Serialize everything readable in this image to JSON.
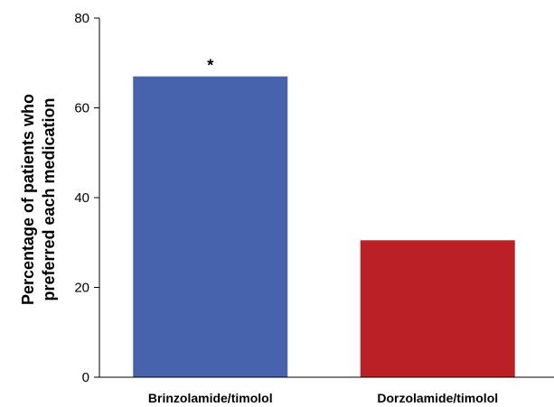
{
  "chart_data": {
    "type": "bar",
    "title": "",
    "xlabel": "",
    "ylabel_lines": [
      "Percentage of patients who",
      "preferred each medication"
    ],
    "categories": [
      "Brinzolamide/timolol",
      "Dorzolamide/timolol"
    ],
    "values": [
      67,
      30.5
    ],
    "colors": [
      "#4863ae",
      "#bb2026"
    ],
    "ylim": [
      0,
      80
    ],
    "yticks": [
      0,
      20,
      40,
      60,
      80
    ],
    "annotations": [
      {
        "category": "Brinzolamide/timolol",
        "text": "*"
      }
    ],
    "grid": false,
    "legend": "none"
  }
}
